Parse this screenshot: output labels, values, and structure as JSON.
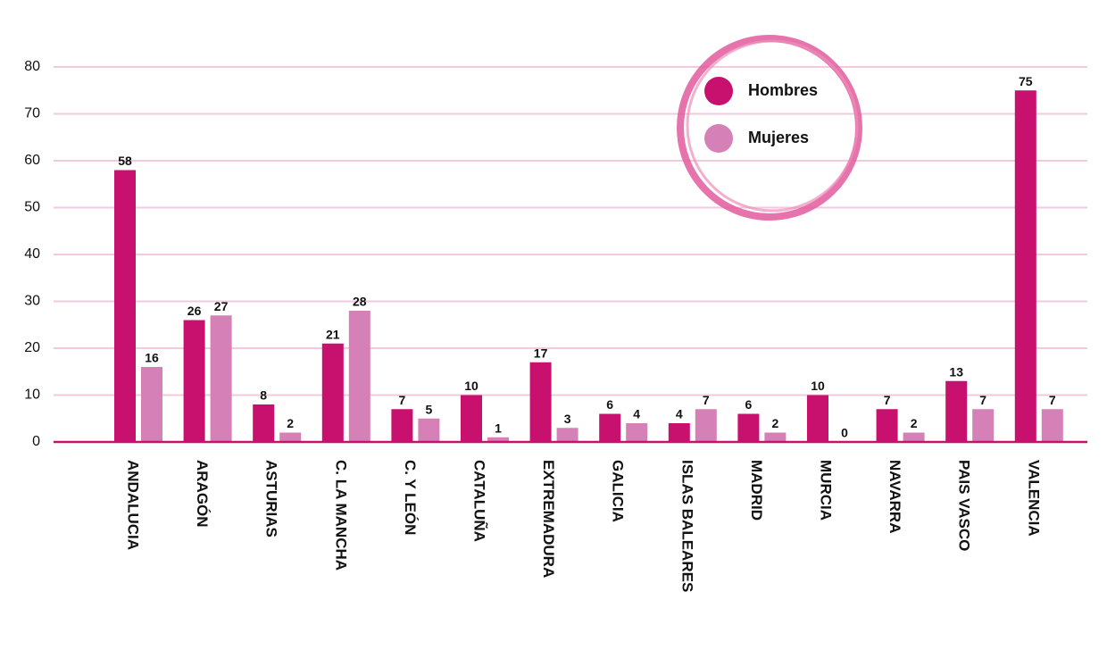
{
  "chart_data": {
    "type": "bar",
    "categories": [
      "ANDALUCIA",
      "ARAGÓN",
      "ASTURIAS",
      "C. LA MANCHA",
      "C. Y LEÓN",
      "CATALUÑA",
      "EXTREMADURA",
      "GALICIA",
      "ISLAS BALEARES",
      "MADRID",
      "MURCIA",
      "NAVARRA",
      "PAIS VASCO",
      "VALENCIA"
    ],
    "series": [
      {
        "name": "Hombres",
        "color": "#c8106e",
        "values": [
          58,
          26,
          8,
          21,
          7,
          10,
          17,
          6,
          4,
          6,
          10,
          7,
          13,
          75
        ]
      },
      {
        "name": "Mujeres",
        "color": "#d580b6",
        "values": [
          16,
          27,
          2,
          28,
          5,
          1,
          3,
          4,
          7,
          2,
          0,
          2,
          7,
          7
        ]
      }
    ],
    "ylim": [
      0,
      80
    ],
    "yticks": [
      0,
      10,
      20,
      30,
      40,
      50,
      60,
      70,
      80
    ],
    "grid": true,
    "legend": "top-right"
  }
}
